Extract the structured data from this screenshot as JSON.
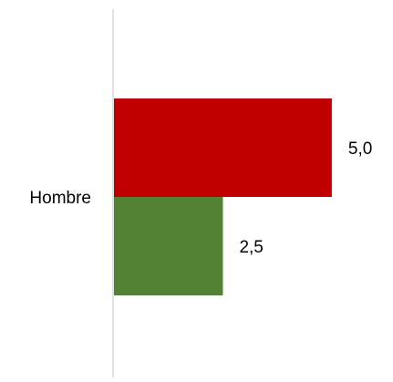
{
  "chart_data": {
    "type": "bar",
    "orientation": "horizontal",
    "categories": [
      "Hombre"
    ],
    "series": [
      {
        "values": [
          5.0
        ],
        "color": "#C00000",
        "labels": [
          "5,0"
        ]
      },
      {
        "values": [
          2.5
        ],
        "color": "#548235",
        "labels": [
          "2,5"
        ]
      }
    ],
    "xlim": [
      0,
      6.3
    ],
    "grid": false,
    "legend": "none"
  }
}
